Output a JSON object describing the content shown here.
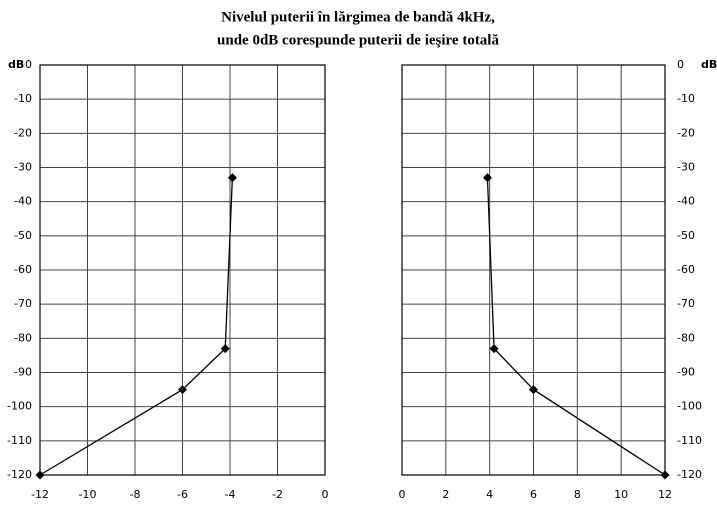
{
  "title": [
    "Nivelul puterii în lărgimea de bandă 4kHz,",
    "unde 0dB corespunde puterii de ieşire totală"
  ],
  "chart_data": [
    {
      "type": "line",
      "ylabel": "dB",
      "x": [
        -12,
        -6,
        -4.2,
        -3.9
      ],
      "values": [
        -120,
        -95,
        -83,
        -33
      ],
      "color": "#000000",
      "xlim": [
        -12,
        0
      ],
      "xticks": [
        -12,
        -10,
        -8,
        -6,
        -4,
        -2,
        0
      ],
      "ylim": [
        -120,
        0
      ],
      "yticks": [
        0,
        -10,
        -20,
        -30,
        -40,
        -50,
        -60,
        -70,
        -80,
        -90,
        -100,
        -110,
        -120
      ],
      "grid": true
    },
    {
      "type": "line",
      "ylabel": "dB",
      "x": [
        3.9,
        4.2,
        6,
        12
      ],
      "values": [
        -33,
        -83,
        -95,
        -120
      ],
      "color": "#000000",
      "xlim": [
        0,
        12
      ],
      "xticks": [
        0,
        2,
        4,
        6,
        8,
        10,
        12
      ],
      "ylim": [
        -120,
        0
      ],
      "yticks": [
        0,
        -10,
        -20,
        -30,
        -40,
        -50,
        -60,
        -70,
        -80,
        -90,
        -100,
        -110,
        -120
      ],
      "grid": true
    }
  ]
}
